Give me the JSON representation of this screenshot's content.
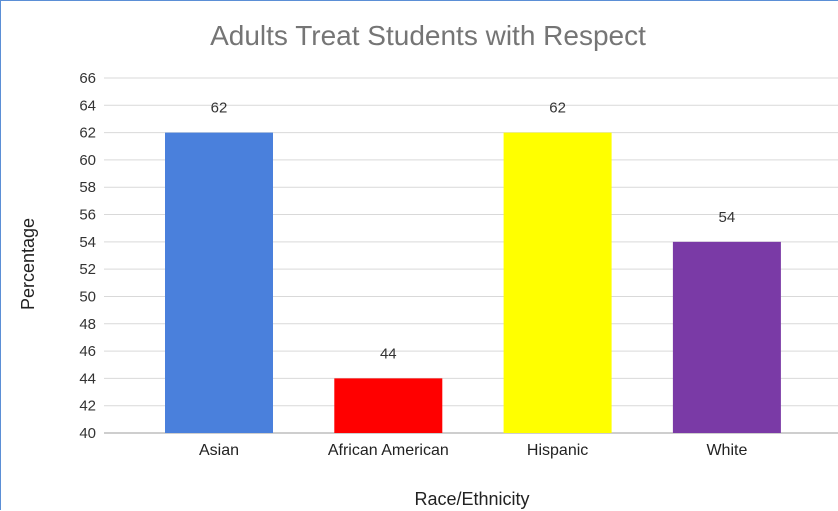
{
  "chart_data": {
    "type": "bar",
    "title": "Adults Treat Students with Respect",
    "xlabel": "Race/Ethnicity",
    "ylabel": "Percentage",
    "ylim": [
      40,
      66
    ],
    "yticks": [
      "40",
      "42",
      "44",
      "46",
      "48",
      "50",
      "52",
      "54",
      "56",
      "58",
      "60",
      "62",
      "64",
      "66"
    ],
    "grid": true,
    "categories": [
      "Asian",
      "African American",
      "Hispanic",
      "White"
    ],
    "values": [
      62,
      44,
      62,
      54
    ],
    "data_labels": [
      "62",
      "44",
      "62",
      "54"
    ],
    "colors": [
      "#4a80dc",
      "#ff0000",
      "#ffff00",
      "#7a3aa6"
    ]
  }
}
